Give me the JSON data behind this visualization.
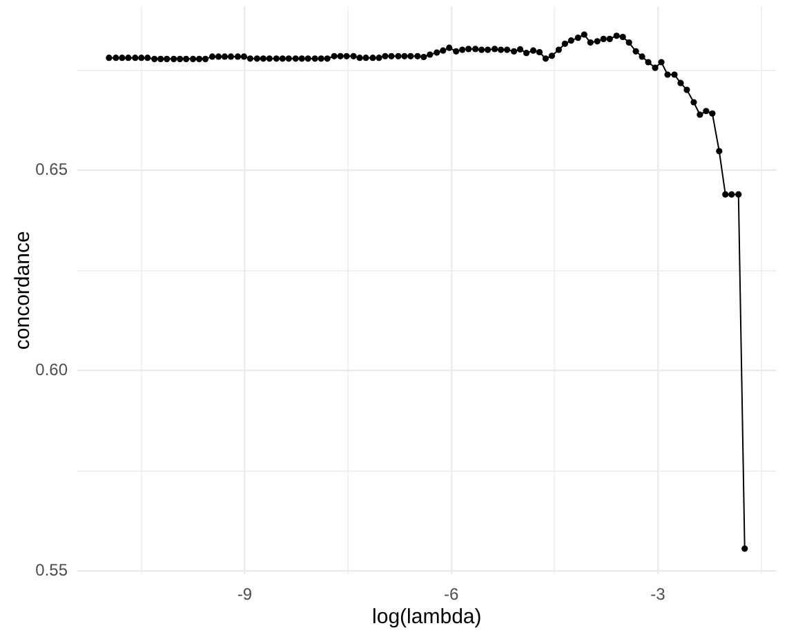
{
  "chart_data": {
    "type": "line",
    "xlabel": "log(lambda)",
    "ylabel": "concordance",
    "x": [
      -10.97,
      -10.87,
      -10.78,
      -10.69,
      -10.59,
      -10.5,
      -10.41,
      -10.31,
      -10.22,
      -10.13,
      -10.03,
      -9.94,
      -9.85,
      -9.75,
      -9.66,
      -9.57,
      -9.47,
      -9.38,
      -9.29,
      -9.2,
      -9.1,
      -9.01,
      -8.92,
      -8.82,
      -8.73,
      -8.64,
      -8.54,
      -8.45,
      -8.36,
      -8.26,
      -8.17,
      -8.08,
      -7.98,
      -7.89,
      -7.8,
      -7.7,
      -7.61,
      -7.52,
      -7.42,
      -7.33,
      -7.24,
      -7.14,
      -7.05,
      -6.96,
      -6.87,
      -6.77,
      -6.68,
      -6.59,
      -6.49,
      -6.4,
      -6.31,
      -6.21,
      -6.12,
      -6.03,
      -5.93,
      -5.84,
      -5.75,
      -5.65,
      -5.56,
      -5.47,
      -5.37,
      -5.28,
      -5.19,
      -5.09,
      -5,
      -4.91,
      -4.81,
      -4.72,
      -4.63,
      -4.54,
      -4.44,
      -4.35,
      -4.26,
      -4.16,
      -4.07,
      -3.98,
      -3.88,
      -3.79,
      -3.7,
      -3.6,
      -3.51,
      -3.42,
      -3.32,
      -3.23,
      -3.14,
      -3.04,
      -2.95,
      -2.86,
      -2.76,
      -2.67,
      -2.58,
      -2.48,
      -2.39,
      -2.3,
      -2.21,
      -2.11,
      -2.02,
      -1.93,
      -1.83,
      -1.74
    ],
    "series": [
      {
        "color": "#000000",
        "values": [
          0.6781,
          0.6781,
          0.6781,
          0.6781,
          0.6781,
          0.6781,
          0.6781,
          0.6778,
          0.6778,
          0.6778,
          0.6778,
          0.6778,
          0.6778,
          0.6778,
          0.6778,
          0.6778,
          0.6784,
          0.6784,
          0.6784,
          0.6784,
          0.6784,
          0.6784,
          0.6779,
          0.6779,
          0.6779,
          0.6779,
          0.6779,
          0.6779,
          0.6779,
          0.6779,
          0.6779,
          0.6779,
          0.6779,
          0.6779,
          0.6779,
          0.6785,
          0.6785,
          0.6785,
          0.6785,
          0.6781,
          0.6781,
          0.6781,
          0.6781,
          0.6785,
          0.6785,
          0.6785,
          0.6785,
          0.6785,
          0.6785,
          0.6783,
          0.6789,
          0.6794,
          0.6799,
          0.6806,
          0.6797,
          0.6801,
          0.6803,
          0.6803,
          0.6801,
          0.6801,
          0.6803,
          0.6801,
          0.6801,
          0.6797,
          0.6802,
          0.6793,
          0.6799,
          0.6795,
          0.6779,
          0.6786,
          0.6801,
          0.6816,
          0.6824,
          0.6831,
          0.6839,
          0.6819,
          0.6822,
          0.6828,
          0.6828,
          0.6836,
          0.6833,
          0.6819,
          0.6797,
          0.6784,
          0.677,
          0.6756,
          0.677,
          0.6739,
          0.6739,
          0.6718,
          0.6701,
          0.667,
          0.6639,
          0.6648,
          0.6642,
          0.6548,
          0.644,
          0.644,
          0.644,
          0.5556
        ]
      }
    ],
    "xlim": [
      -11.43,
      -1.28
    ],
    "ylim": [
      0.5492,
      0.6909
    ],
    "xticks": [
      {
        "value": -10.5,
        "label": null
      },
      -9,
      {
        "value": -7.5,
        "label": null
      },
      -6,
      {
        "value": -4.5,
        "label": null
      },
      -3,
      {
        "value": -1.5,
        "label": null
      }
    ],
    "yticks": [
      0.55,
      {
        "value": 0.575,
        "label": null
      },
      {
        "value": 0.6,
        "label": "0.60"
      },
      {
        "value": 0.625,
        "label": null
      },
      0.65,
      {
        "value": 0.675,
        "label": null
      }
    ],
    "grid": true,
    "marker": "circle",
    "line_style": "solid"
  }
}
